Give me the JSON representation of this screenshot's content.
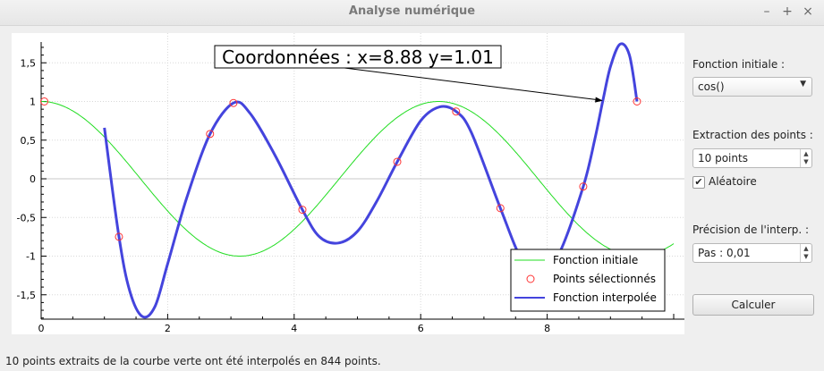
{
  "window": {
    "title": "Analyse numérique",
    "minimize": "–",
    "maximize": "+",
    "close": "×"
  },
  "sidebar": {
    "fonction_label": "Fonction initiale :",
    "fonction_value": "cos()",
    "extraction_label": "Extraction des points :",
    "extraction_value": "10 points",
    "aleatoire_label": "Aléatoire",
    "aleatoire_checked": true,
    "precision_label": "Précision de l'interp. :",
    "precision_value": "Pas : 0,01",
    "calculer_label": "Calculer"
  },
  "status": "10 points extraits de la courbe verte ont été interpolés en 844 points.",
  "chart_data": {
    "type": "line",
    "xlim": [
      0,
      10
    ],
    "ylim": [
      -1.8,
      1.8
    ],
    "x_ticks": [
      0,
      2,
      4,
      6,
      8
    ],
    "y_ticks": [
      1.5,
      1,
      0.5,
      0,
      -0.5,
      -1,
      -1.5
    ],
    "y_tick_labels": [
      "1,5",
      "1",
      "0,5",
      "0",
      "-0,5",
      "-1",
      "-1,5"
    ],
    "annotation": {
      "text": "Coordonnées : x=8.88 y=1.01",
      "target": [
        8.88,
        1.01
      ]
    },
    "legend": {
      "placement": "bottom-right",
      "entries": [
        "Fonction initiale",
        "Points sélectionnés",
        "Fonction interpolée"
      ]
    },
    "series": [
      {
        "name": "Fonction initiale",
        "color": "#22dd22",
        "function": "cos",
        "x_range": [
          0,
          10
        ]
      },
      {
        "name": "Points sélectionnés",
        "color": "#ff3333",
        "x": [
          0.05,
          1.23,
          2.67,
          3.04,
          4.13,
          5.63,
          6.56,
          7.26,
          8.57,
          9.42
        ],
        "y": [
          1.0,
          -0.75,
          0.58,
          0.98,
          -0.4,
          0.22,
          0.87,
          -0.38,
          -0.1,
          1.0
        ]
      },
      {
        "name": "Fonction interpolée",
        "color": "#4444dd",
        "x": [
          1.0,
          1.23,
          1.4,
          1.6,
          1.8,
          2.0,
          2.3,
          2.67,
          3.04,
          3.3,
          3.7,
          4.13,
          4.4,
          4.7,
          5.0,
          5.3,
          5.63,
          6.0,
          6.3,
          6.56,
          6.8,
          7.26,
          7.6,
          7.9,
          8.2,
          8.57,
          8.75,
          8.88,
          9.0,
          9.15,
          9.3,
          9.42
        ],
        "y": [
          0.66,
          -0.75,
          -1.45,
          -1.78,
          -1.65,
          -1.1,
          -0.25,
          0.58,
          0.98,
          0.85,
          0.3,
          -0.4,
          -0.75,
          -0.83,
          -0.68,
          -0.3,
          0.22,
          0.75,
          0.93,
          0.87,
          0.6,
          -0.38,
          -1.05,
          -1.25,
          -0.95,
          -0.1,
          0.5,
          1.01,
          1.45,
          1.74,
          1.6,
          1.0
        ]
      }
    ]
  }
}
